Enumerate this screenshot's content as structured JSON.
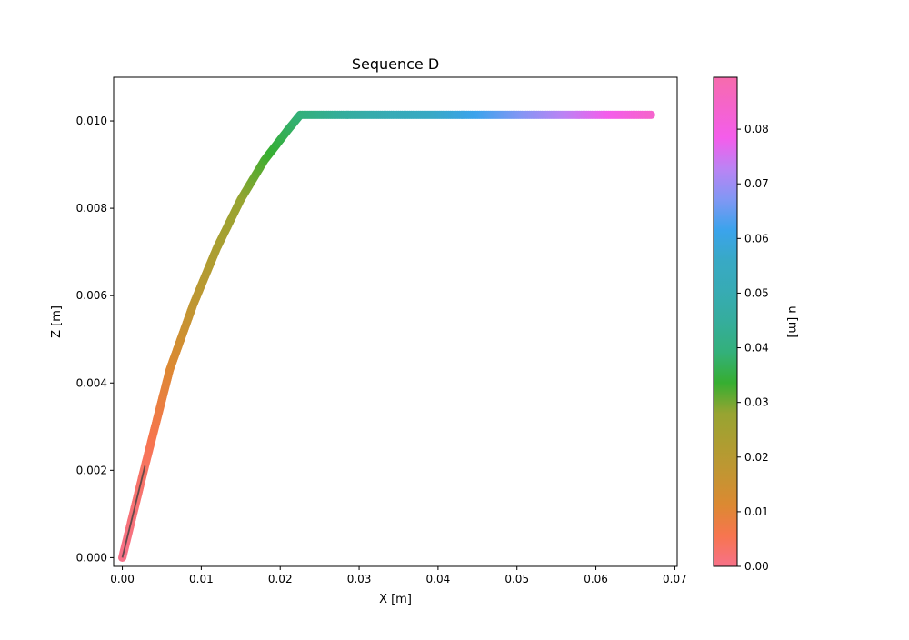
{
  "chart_data": {
    "type": "scatter",
    "title": "Sequence D",
    "xlabel": "X [m]",
    "ylabel": "Z [m]",
    "xlim": [
      -0.0011,
      0.0703
    ],
    "ylim": [
      -0.0002,
      0.011
    ],
    "x_ticks": [
      "0.00",
      "0.01",
      "0.02",
      "0.03",
      "0.04",
      "0.05",
      "0.06",
      "0.07"
    ],
    "x_tick_values": [
      0.0,
      0.01,
      0.02,
      0.03,
      0.04,
      0.05,
      0.06,
      0.07
    ],
    "y_ticks": [
      "0.000",
      "0.002",
      "0.004",
      "0.006",
      "0.008",
      "0.010"
    ],
    "y_tick_values": [
      0.0,
      0.002,
      0.004,
      0.006,
      0.008,
      0.01
    ],
    "grid": false,
    "series": [
      {
        "x": [
          0.0,
          0.00287,
          0.006,
          0.009,
          0.012,
          0.015,
          0.018,
          0.021,
          0.02254,
          0.03,
          0.04,
          0.05,
          0.06,
          0.06698
        ],
        "y": [
          0.0,
          0.0021,
          0.0043,
          0.0058,
          0.0071,
          0.0082,
          0.0091,
          0.0098,
          0.01014,
          0.01014,
          0.01014,
          0.01014,
          0.01014,
          0.01014
        ],
        "u": [
          0.0,
          0.0036,
          0.0107,
          0.0175,
          0.0232,
          0.0278,
          0.0323,
          0.0369,
          0.039,
          0.0466,
          0.0566,
          0.0666,
          0.0766,
          0.0836
        ]
      }
    ],
    "reference_line": {
      "x": [
        0.0,
        0.00287
      ],
      "y": [
        0.0,
        0.0021
      ],
      "color": "#404040"
    },
    "colorbar": {
      "label": "u [m]",
      "range": [
        0.0,
        0.0895
      ],
      "ticks": [
        "0.00",
        "0.01",
        "0.02",
        "0.03",
        "0.04",
        "0.05",
        "0.06",
        "0.07",
        "0.08"
      ],
      "tick_values": [
        0.0,
        0.01,
        0.02,
        0.03,
        0.04,
        0.05,
        0.06,
        0.07,
        0.08
      ],
      "stops": [
        {
          "v": 0.0,
          "color": "#f77189"
        },
        {
          "v": 0.0056,
          "color": "#f7754f"
        },
        {
          "v": 0.0112,
          "color": "#dc8932"
        },
        {
          "v": 0.0168,
          "color": "#c39532"
        },
        {
          "v": 0.0224,
          "color": "#ae9d31"
        },
        {
          "v": 0.028,
          "color": "#97a431"
        },
        {
          "v": 0.0336,
          "color": "#36ae31"
        },
        {
          "v": 0.0392,
          "color": "#33b07a"
        },
        {
          "v": 0.0448,
          "color": "#35ad9c"
        },
        {
          "v": 0.0504,
          "color": "#37abb4"
        },
        {
          "v": 0.056,
          "color": "#38a9c5"
        },
        {
          "v": 0.0616,
          "color": "#3ba3ec"
        },
        {
          "v": 0.0672,
          "color": "#8197f4"
        },
        {
          "v": 0.0728,
          "color": "#bb83f4"
        },
        {
          "v": 0.0784,
          "color": "#f45deb"
        },
        {
          "v": 0.0895,
          "color": "#f66bad"
        }
      ]
    }
  }
}
